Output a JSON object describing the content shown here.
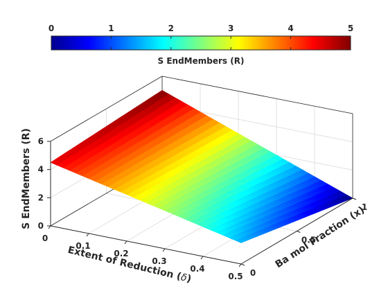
{
  "chart_data": {
    "type": "surface",
    "colorbar": {
      "label": "S EndMembers (R)",
      "ticks": [
        "0",
        "1",
        "2",
        "3",
        "4",
        "5"
      ],
      "range": [
        0,
        5
      ],
      "colormap": "jet",
      "position": "top"
    },
    "axes": {
      "x": {
        "label_main": "Extent of Reduction (",
        "label_symbol": "δ",
        "label_close": ")",
        "ticks": [
          0,
          0.1,
          0.2,
          0.3,
          0.4,
          0.5
        ],
        "tick_labels": [
          "0",
          "0.1",
          "0.2",
          "0.3",
          "0.4",
          "0.5"
        ],
        "range": [
          0,
          0.5
        ]
      },
      "y": {
        "label": "Ba mol Fraction (x)",
        "ticks": [
          0,
          0.5,
          1
        ],
        "tick_labels": [
          "0",
          "0.5",
          "1"
        ],
        "range": [
          0,
          1
        ]
      },
      "z": {
        "label": "S EndMembers (R)",
        "ticks": [
          0,
          2,
          4,
          6
        ],
        "tick_labels": [
          "0",
          "2",
          "4",
          "6"
        ],
        "range": [
          0,
          6
        ]
      }
    },
    "surface_corners": [
      {
        "delta": 0,
        "x": 0,
        "z": 4.5
      },
      {
        "delta": 0,
        "x": 1,
        "z": 5.0
      },
      {
        "delta": 0.5,
        "x": 0,
        "z": 1.5
      },
      {
        "delta": 0.5,
        "x": 1,
        "z": 0.0
      }
    ],
    "grid": true,
    "box": true
  }
}
